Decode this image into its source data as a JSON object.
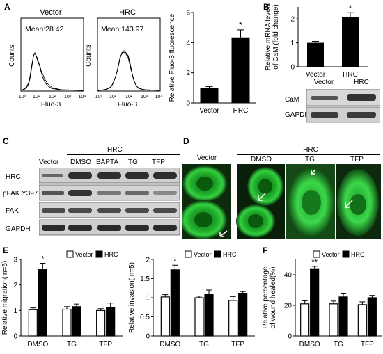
{
  "panels": {
    "A": "A",
    "B": "B",
    "C": "C",
    "D": "D",
    "E": "E",
    "F": "F"
  },
  "panel_a": {
    "histograms": [
      {
        "title": "Vector",
        "mean": "Mean:28.42",
        "xlabel": "Fluo-3",
        "ylabel": "Counts"
      },
      {
        "title": "HRC",
        "mean": "Mean:143.97",
        "xlabel": "Fluo-3",
        "ylabel": "Counts"
      }
    ],
    "hist_ticks": [
      "10⁰",
      "10¹",
      "10²",
      "10³",
      "10⁴"
    ]
  },
  "panel_c": {
    "group_label": "HRC",
    "columns": [
      "Vector",
      "DMSO",
      "BAPTA",
      "TG",
      "TFP"
    ],
    "rows": [
      "HRC",
      "pFAK Y397",
      "FAK",
      "GAPDH"
    ]
  },
  "panel_d": {
    "group_label": "HRC",
    "images": [
      "Vector",
      "DMSO",
      "TG",
      "TFP"
    ]
  },
  "panel_b_blot": {
    "columns": [
      "Vector",
      "HRC"
    ],
    "rows": [
      "CaM",
      "GAPDH"
    ]
  },
  "chart_data": [
    {
      "id": "A-bar",
      "type": "bar",
      "categories": [
        "Vector",
        "HRC"
      ],
      "values": [
        1.0,
        4.35
      ],
      "errors": [
        0.08,
        0.5
      ],
      "ylabel": "Relative Fluo-3  fluorescence",
      "ylim": [
        0,
        6
      ],
      "yticks": [
        0,
        2,
        4,
        6
      ],
      "significance": [
        "",
        "*"
      ]
    },
    {
      "id": "B-bar",
      "type": "bar",
      "categories": [
        "Vector",
        "HRC"
      ],
      "values": [
        1.0,
        2.08
      ],
      "errors": [
        0.06,
        0.18
      ],
      "ylabel": "Relative mRNA levels of CaM (fold change)",
      "ylim": [
        0,
        2.5
      ],
      "yticks": [
        0,
        1,
        2
      ],
      "significance": [
        "",
        "*"
      ]
    },
    {
      "id": "E-mig",
      "type": "bar",
      "categories": [
        "DMSO",
        "TG",
        "TFP"
      ],
      "series": [
        {
          "name": "Vector",
          "values": [
            1.03,
            1.05,
            1.0
          ],
          "errors": [
            0.07,
            0.1,
            0.07
          ]
        },
        {
          "name": "HRC",
          "values": [
            2.6,
            1.15,
            1.12
          ],
          "errors": [
            0.25,
            0.1,
            0.17
          ]
        }
      ],
      "ylabel": "Relative migration( n=5)",
      "ylim": [
        0,
        3
      ],
      "yticks": [
        0,
        1,
        2,
        3
      ],
      "significance": [
        "*",
        "",
        ""
      ]
    },
    {
      "id": "E-inv",
      "type": "bar",
      "categories": [
        "DMSO",
        "TG",
        "TFP"
      ],
      "series": [
        {
          "name": "Vector",
          "values": [
            1.02,
            1.0,
            0.93
          ],
          "errors": [
            0.06,
            0.04,
            0.1
          ]
        },
        {
          "name": "HRC",
          "values": [
            1.73,
            1.08,
            1.1
          ],
          "errors": [
            0.12,
            0.12,
            0.06
          ]
        }
      ],
      "ylabel": "Relative invasion( n=5)",
      "ylim": [
        0,
        2.0
      ],
      "yticks": [
        0,
        0.5,
        1.0,
        1.5,
        2.0
      ],
      "significance": [
        "*",
        "",
        ""
      ]
    },
    {
      "id": "F",
      "type": "bar",
      "categories": [
        "DMSO",
        "TG",
        "TFP"
      ],
      "series": [
        {
          "name": "Vector",
          "values": [
            21,
            21,
            20.5
          ],
          "errors": [
            2,
            1.8,
            1.8
          ]
        },
        {
          "name": "HRC",
          "values": [
            43.5,
            25.5,
            25
          ],
          "errors": [
            2,
            2,
            1.5
          ]
        }
      ],
      "ylabel": "Relative percentage of wound healed(%)",
      "ylim": [
        0,
        50
      ],
      "yticks": [
        0,
        20,
        40
      ],
      "significance": [
        "**",
        "",
        ""
      ]
    }
  ]
}
